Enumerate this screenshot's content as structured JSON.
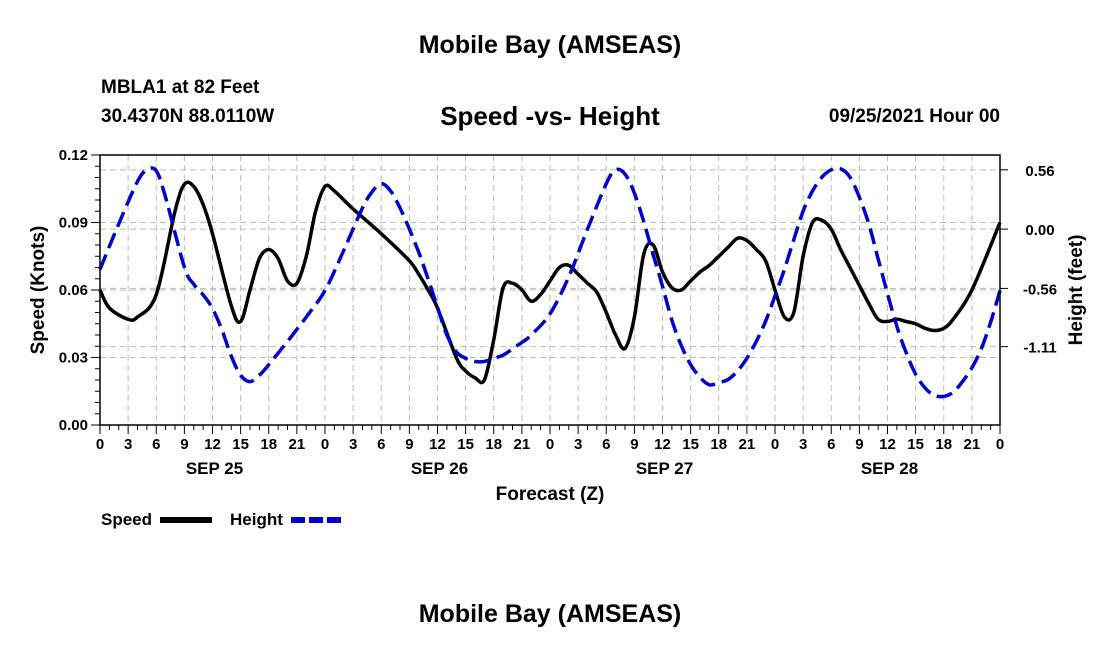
{
  "header": {
    "top_title": "Mobile Bay (AMSEAS)",
    "station": "MBLA1 at 82 Feet",
    "coords": "30.4370N  88.0110W",
    "chart_title": "Speed -vs- Height",
    "datetime": "09/25/2021 Hour 00",
    "bottom_title": "Mobile Bay (AMSEAS)"
  },
  "colors": {
    "speed": "#000000",
    "height": "#0000cc",
    "grid": "#bbbbbb"
  },
  "chart_data": {
    "type": "line",
    "title": "Speed -vs- Height",
    "xlabel": "Forecast (Z)",
    "ylabel": "Speed (Knots)",
    "y2label": "Height (feet)",
    "xlim": [
      0,
      96
    ],
    "ylim": [
      0,
      0.12
    ],
    "y2lim": [
      -1.85,
      0.7
    ],
    "x_ticks": [
      0,
      3,
      6,
      9,
      12,
      15,
      18,
      21,
      24,
      27,
      30,
      33,
      36,
      39,
      42,
      45,
      48,
      51,
      54,
      57,
      60,
      63,
      66,
      69,
      72,
      75,
      78,
      81,
      84,
      87,
      90,
      93,
      96
    ],
    "x_tick_labels": [
      "0",
      "3",
      "6",
      "9",
      "12",
      "15",
      "18",
      "21",
      "0",
      "3",
      "6",
      "9",
      "12",
      "15",
      "18",
      "21",
      "0",
      "3",
      "6",
      "9",
      "12",
      "15",
      "18",
      "21",
      "0",
      "3",
      "6",
      "9",
      "12",
      "15",
      "18",
      "21",
      "0"
    ],
    "day_labels": [
      {
        "hour": 12,
        "label": "SEP 25"
      },
      {
        "hour": 36,
        "label": "SEP 26"
      },
      {
        "hour": 60,
        "label": "SEP 27"
      },
      {
        "hour": 84,
        "label": "SEP 28"
      }
    ],
    "y_ticks": [
      0.0,
      0.03,
      0.06,
      0.09,
      0.12
    ],
    "y_tick_labels": [
      "0.00",
      "0.03",
      "0.06",
      "0.09",
      "0.12"
    ],
    "y2_ticks": [
      0.56,
      0.0,
      -0.56,
      -1.11
    ],
    "y2_tick_labels": [
      "0.56",
      "0.00",
      "-0.56",
      "-1.11"
    ],
    "legend": {
      "position": "bottom-left",
      "speed_label": "Speed",
      "height_label": "Height"
    },
    "series": [
      {
        "name": "Speed",
        "axis": "left",
        "style": "solid",
        "x": [
          0,
          1,
          3,
          4,
          6,
          8,
          9,
          10,
          11,
          12,
          14,
          15,
          16,
          17,
          18,
          19,
          20,
          21,
          22,
          23,
          24,
          25,
          27,
          30,
          33,
          34,
          35,
          36,
          38,
          39,
          40,
          41,
          42,
          43,
          44,
          45,
          46,
          47,
          48,
          49,
          50,
          51,
          52,
          53,
          54,
          55,
          56,
          57,
          58,
          59,
          60,
          61,
          62,
          63,
          64,
          65,
          66,
          67,
          68,
          69,
          70,
          71,
          72,
          73,
          74,
          75,
          76,
          77,
          78,
          79,
          80,
          81,
          82,
          83,
          84,
          85,
          86,
          87,
          88,
          89,
          90,
          91,
          93,
          96
        ],
        "values": [
          0.06,
          0.052,
          0.047,
          0.048,
          0.058,
          0.095,
          0.107,
          0.106,
          0.098,
          0.085,
          0.053,
          0.046,
          0.06,
          0.074,
          0.078,
          0.074,
          0.064,
          0.063,
          0.075,
          0.095,
          0.106,
          0.104,
          0.096,
          0.085,
          0.073,
          0.067,
          0.06,
          0.052,
          0.03,
          0.024,
          0.021,
          0.02,
          0.038,
          0.061,
          0.063,
          0.06,
          0.055,
          0.058,
          0.064,
          0.07,
          0.071,
          0.067,
          0.063,
          0.059,
          0.05,
          0.04,
          0.034,
          0.048,
          0.076,
          0.08,
          0.068,
          0.061,
          0.06,
          0.064,
          0.068,
          0.071,
          0.075,
          0.079,
          0.083,
          0.082,
          0.078,
          0.073,
          0.06,
          0.048,
          0.05,
          0.075,
          0.09,
          0.091,
          0.087,
          0.078,
          0.07,
          0.062,
          0.054,
          0.047,
          0.046,
          0.047,
          0.046,
          0.045,
          0.043,
          0.042,
          0.043,
          0.047,
          0.06,
          0.09
        ]
      },
      {
        "name": "Height",
        "axis": "right",
        "style": "dashed",
        "x": [
          0,
          2,
          4,
          5,
          6,
          7,
          9,
          10,
          11,
          12,
          13,
          14,
          15,
          16,
          17,
          18,
          20,
          22,
          24,
          26,
          28,
          29,
          30,
          31,
          32,
          33,
          34,
          35,
          36,
          37,
          38,
          39,
          40,
          41,
          42,
          43,
          44,
          45,
          46,
          48,
          50,
          52,
          54,
          55,
          56,
          57,
          58,
          59,
          60,
          61,
          62,
          63,
          64,
          65,
          66,
          67,
          68,
          69,
          70,
          71,
          72,
          73,
          74,
          75,
          76,
          77,
          78,
          79,
          80,
          81,
          82,
          83,
          84,
          85,
          86,
          87,
          88,
          89,
          90,
          91,
          92,
          93,
          94,
          95,
          96
        ],
        "values": [
          -0.38,
          0.05,
          0.45,
          0.56,
          0.55,
          0.3,
          -0.36,
          -0.52,
          -0.62,
          -0.75,
          -0.95,
          -1.2,
          -1.38,
          -1.44,
          -1.38,
          -1.28,
          -1.06,
          -0.83,
          -0.58,
          -0.2,
          0.2,
          0.35,
          0.43,
          0.36,
          0.2,
          0.0,
          -0.22,
          -0.47,
          -0.74,
          -1.0,
          -1.16,
          -1.22,
          -1.25,
          -1.25,
          -1.22,
          -1.19,
          -1.13,
          -1.07,
          -1.0,
          -0.8,
          -0.45,
          0.0,
          0.43,
          0.56,
          0.52,
          0.34,
          0.07,
          -0.24,
          -0.54,
          -0.86,
          -1.1,
          -1.28,
          -1.4,
          -1.47,
          -1.45,
          -1.42,
          -1.34,
          -1.22,
          -1.06,
          -0.87,
          -0.63,
          -0.38,
          -0.1,
          0.17,
          0.36,
          0.49,
          0.56,
          0.57,
          0.49,
          0.3,
          0.05,
          -0.28,
          -0.61,
          -0.92,
          -1.17,
          -1.37,
          -1.5,
          -1.57,
          -1.58,
          -1.54,
          -1.44,
          -1.31,
          -1.13,
          -0.88,
          -0.58
        ]
      }
    ]
  }
}
